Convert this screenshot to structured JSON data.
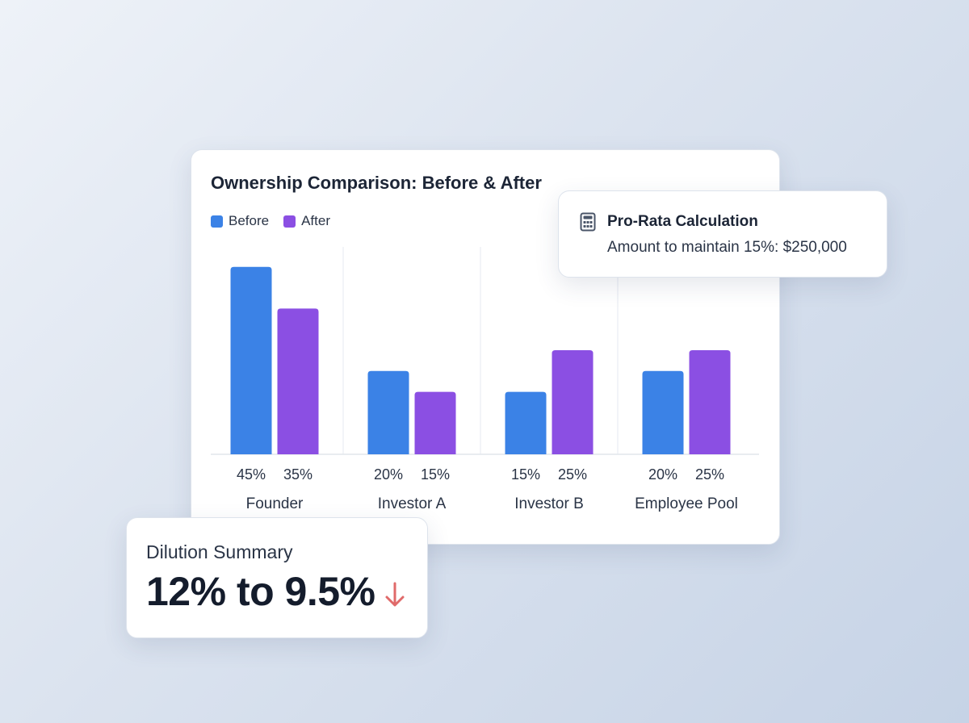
{
  "chart_data": {
    "type": "bar",
    "title": "Ownership Comparison: Before & After",
    "categories": [
      "Founder",
      "Investor A",
      "Investor B",
      "Employee Pool"
    ],
    "series": [
      {
        "name": "Before",
        "color": "#3b82e6",
        "values": [
          45,
          20,
          15,
          20
        ],
        "labels": [
          "45%",
          "20%",
          "15%",
          "20%"
        ]
      },
      {
        "name": "After",
        "color": "#8b4fe3",
        "values": [
          35,
          15,
          25,
          25
        ],
        "labels": [
          "35%",
          "15%",
          "25%",
          "25%"
        ]
      }
    ],
    "ylim": [
      0,
      50
    ],
    "grid": false,
    "legend": "top-left"
  },
  "prorata": {
    "icon": "calculator-icon",
    "title": "Pro-Rata Calculation",
    "text": "Amount to maintain 15%: $250,000"
  },
  "dilution": {
    "label": "Dilution Summary",
    "value": "12% to 9.5%",
    "icon": "down-arrow-icon",
    "accent": "#e06a6a"
  }
}
